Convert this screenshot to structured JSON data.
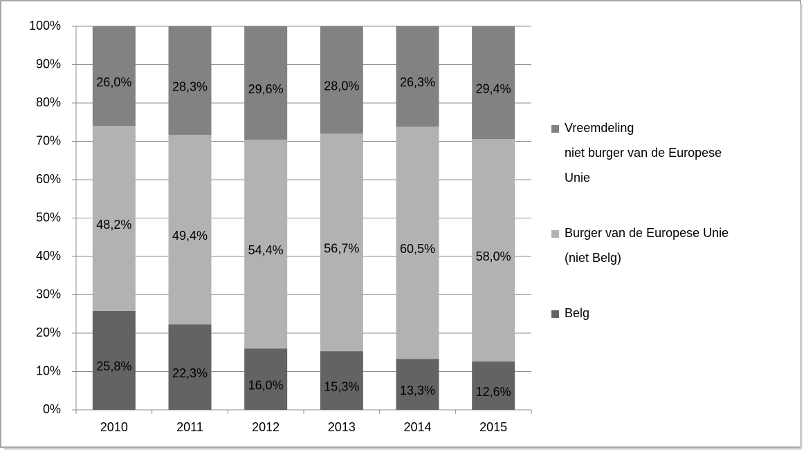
{
  "chart_data": {
    "type": "stacked_bar",
    "categories": [
      "2010",
      "2011",
      "2012",
      "2013",
      "2014",
      "2015"
    ],
    "series": [
      {
        "name": "Belg",
        "color": "#636363",
        "values": [
          25.8,
          22.3,
          16.0,
          15.3,
          13.3,
          12.6
        ],
        "value_labels": [
          "25,8%",
          "22,3%",
          "16,0%",
          "15,3%",
          "13,3%",
          "12,6%"
        ]
      },
      {
        "name": "Burger van de Europese Unie (niet Belg)",
        "color": "#b2b2b2",
        "values": [
          48.2,
          49.4,
          54.4,
          56.7,
          60.5,
          58.0
        ],
        "value_labels": [
          "48,2%",
          "49,4%",
          "54,4%",
          "56,7%",
          "60,5%",
          "58,0%"
        ]
      },
      {
        "name": "Vreemdeling\nniet burger van de Europese Unie",
        "color": "#828282",
        "values": [
          26.0,
          28.3,
          29.6,
          28.0,
          26.3,
          29.4
        ],
        "value_labels": [
          "26,0%",
          "28,3%",
          "29,6%",
          "28,0%",
          "26,3%",
          "29,4%"
        ]
      }
    ],
    "ylim": [
      0,
      100
    ],
    "yticks": [
      {
        "value": 0,
        "label": "0%"
      },
      {
        "value": 10,
        "label": "10%"
      },
      {
        "value": 20,
        "label": "20%"
      },
      {
        "value": 30,
        "label": "30%"
      },
      {
        "value": 40,
        "label": "40%"
      },
      {
        "value": 50,
        "label": "50%"
      },
      {
        "value": 60,
        "label": "60%"
      },
      {
        "value": 70,
        "label": "70%"
      },
      {
        "value": 80,
        "label": "80%"
      },
      {
        "value": 90,
        "label": "90%"
      },
      {
        "value": 100,
        "label": "100%"
      }
    ],
    "grid": true,
    "legend": "right"
  }
}
